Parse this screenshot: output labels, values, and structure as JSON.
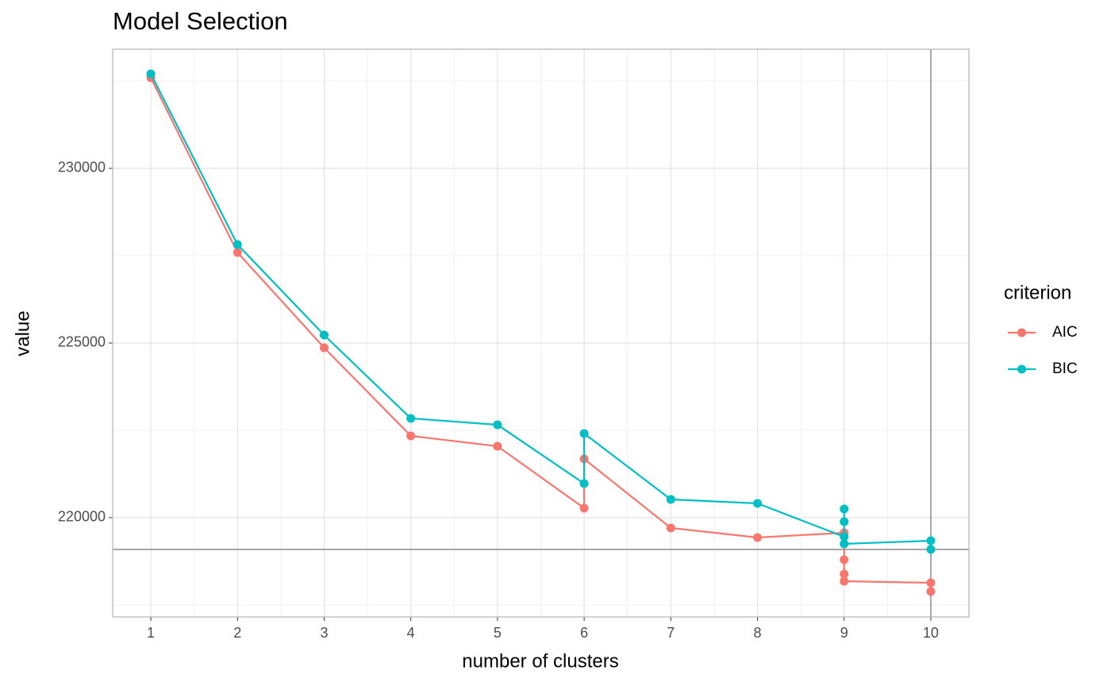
{
  "chart_data": {
    "type": "line",
    "title": "Model Selection",
    "x_label": "number of clusters",
    "y_label": "value",
    "legend_title": "criterion",
    "legend_position": "right",
    "grid": true,
    "series": [
      {
        "name": "AIC",
        "color": "#F8766D",
        "x": [
          1,
          2,
          3,
          4,
          5,
          6,
          6,
          7,
          8,
          9,
          9,
          9,
          9,
          10,
          10
        ],
        "values": [
          232591,
          227591,
          224864,
          222341,
          222045,
          220273,
          221682,
          219705,
          219432,
          219568,
          218795,
          218386,
          218182,
          218136,
          217886
        ]
      },
      {
        "name": "BIC",
        "color": "#00BFC4",
        "x": [
          1,
          2,
          3,
          4,
          5,
          6,
          6,
          7,
          8,
          9,
          9,
          9,
          9,
          10,
          10
        ],
        "values": [
          232705,
          227818,
          225227,
          222841,
          222659,
          220977,
          222409,
          220523,
          220409,
          219455,
          220250,
          219886,
          219250,
          219341,
          219091
        ]
      }
    ],
    "xlim": [
      0.56,
      10.44
    ],
    "xticks": [
      1,
      2,
      3,
      4,
      5,
      6,
      7,
      8,
      9,
      10
    ],
    "xminor": [
      1.5,
      2.5,
      3.5,
      4.5,
      5.5,
      6.5,
      7.5,
      8.5,
      9.5
    ],
    "ylim": [
      217159,
      233409
    ],
    "yticks": [
      220000,
      225000,
      230000
    ],
    "yminor": [
      217500,
      222500,
      227500,
      232500
    ],
    "hline": 219091,
    "vline": 10
  }
}
